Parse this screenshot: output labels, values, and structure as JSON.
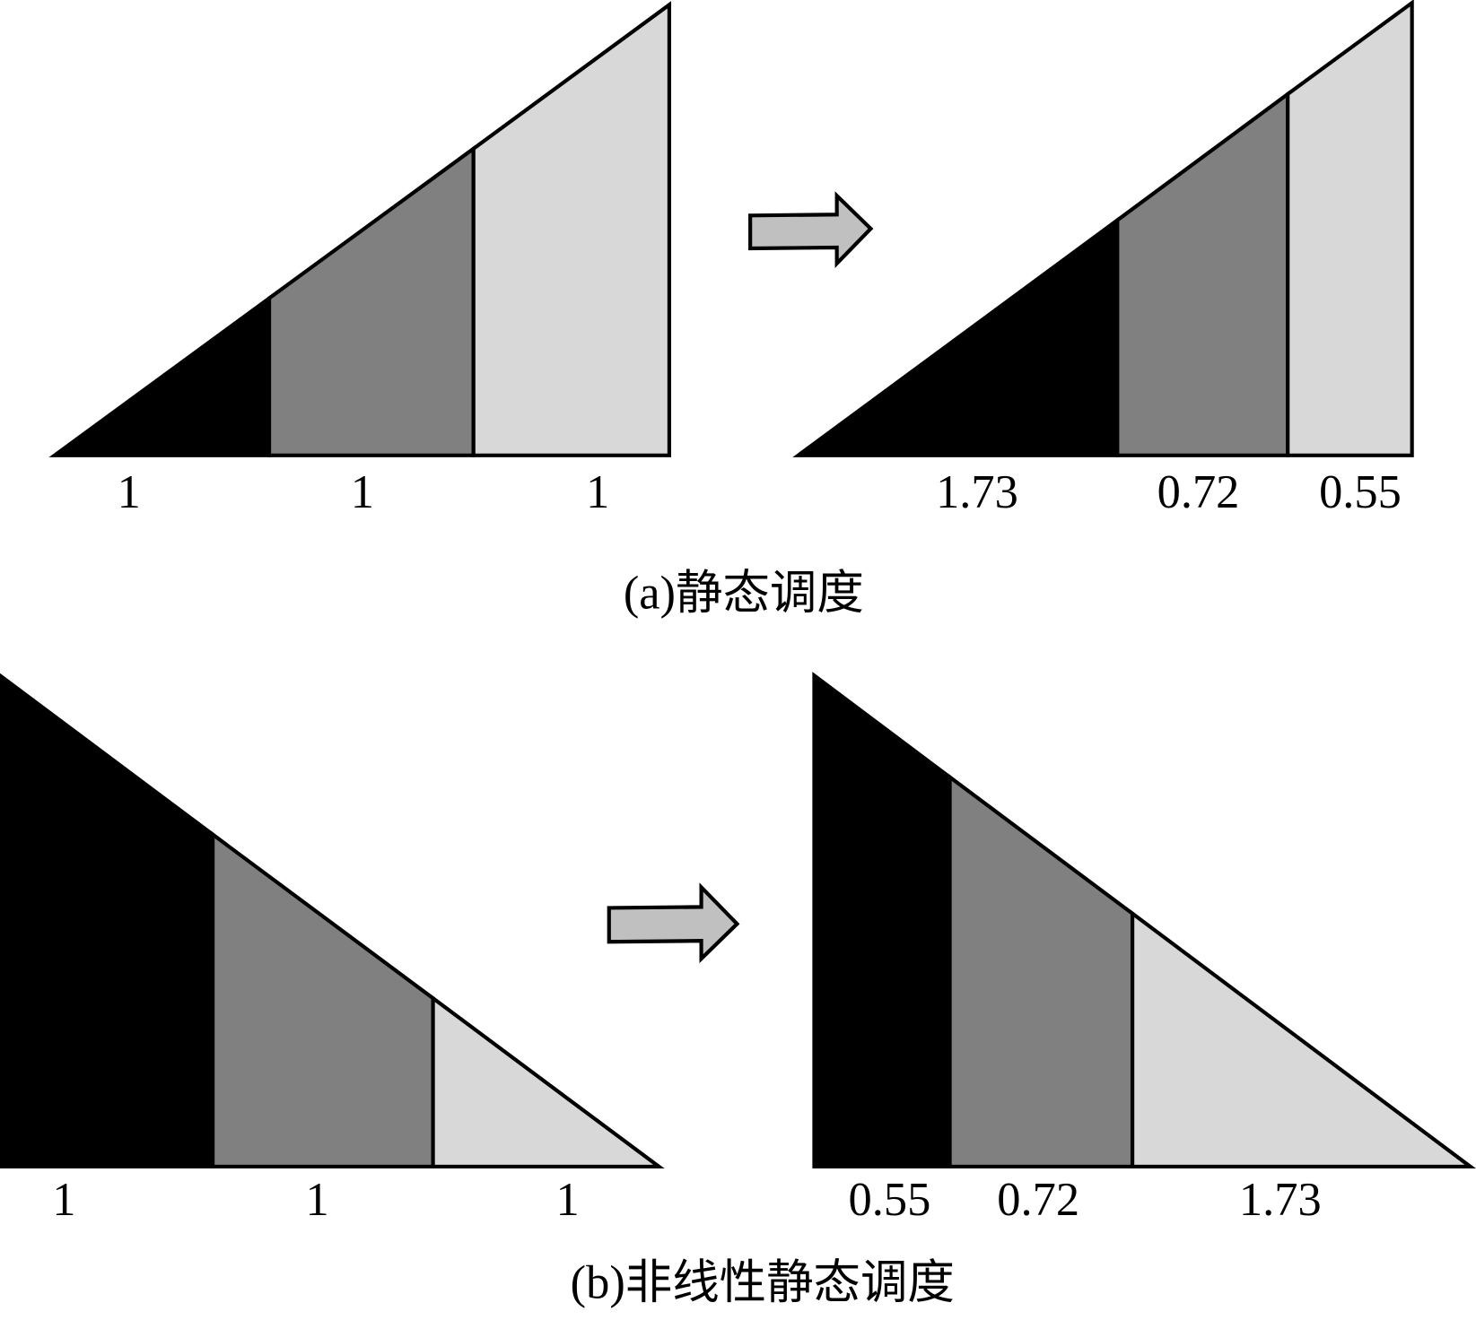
{
  "panels": [
    {
      "before_labels": [
        "1",
        "1",
        "1"
      ],
      "after_labels": [
        "1.73",
        "0.72",
        "0.55"
      ],
      "caption": "(a)静态调度"
    },
    {
      "before_labels": [
        "1",
        "1",
        "1"
      ],
      "after_labels": [
        "0.55",
        "0.72",
        "1.73"
      ],
      "caption": "(b)非线性静态调度"
    }
  ]
}
